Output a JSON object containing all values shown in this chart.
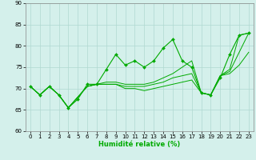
{
  "xlabel": "Humidité relative (%)",
  "xlim": [
    -0.5,
    23.5
  ],
  "ylim": [
    60,
    90
  ],
  "yticks": [
    60,
    65,
    70,
    75,
    80,
    85,
    90
  ],
  "xticks": [
    0,
    1,
    2,
    3,
    4,
    5,
    6,
    7,
    8,
    9,
    10,
    11,
    12,
    13,
    14,
    15,
    16,
    17,
    18,
    19,
    20,
    21,
    22,
    23
  ],
  "bg_color": "#d4f0eb",
  "grid_color": "#b0d8d0",
  "line_color": "#00aa00",
  "series_with_markers": [
    70.5,
    68.5,
    70.5,
    68.5,
    65.5,
    67.5,
    71.0,
    71.0,
    74.5,
    78.0,
    75.5,
    76.5,
    75.0,
    76.5,
    79.5,
    81.5,
    76.5,
    75.0,
    69.0,
    68.5,
    72.5,
    78.0,
    82.5,
    83.0
  ],
  "series_plain": [
    [
      70.5,
      68.5,
      70.5,
      68.5,
      65.5,
      68.0,
      70.5,
      71.0,
      71.5,
      71.5,
      71.0,
      71.0,
      71.0,
      71.5,
      72.5,
      73.5,
      75.0,
      76.5,
      69.0,
      68.5,
      73.0,
      74.5,
      82.5,
      83.0
    ],
    [
      70.5,
      68.5,
      70.5,
      68.5,
      65.5,
      68.0,
      70.5,
      71.0,
      71.0,
      71.0,
      70.5,
      70.5,
      70.5,
      71.0,
      71.5,
      72.5,
      73.0,
      73.5,
      69.0,
      68.5,
      73.0,
      74.0,
      78.5,
      83.0
    ],
    [
      70.5,
      68.5,
      70.5,
      68.5,
      65.5,
      68.0,
      70.5,
      71.0,
      71.0,
      71.0,
      70.0,
      70.0,
      69.5,
      70.0,
      70.5,
      71.0,
      71.5,
      72.0,
      69.0,
      68.5,
      73.0,
      73.5,
      75.5,
      78.5
    ]
  ]
}
